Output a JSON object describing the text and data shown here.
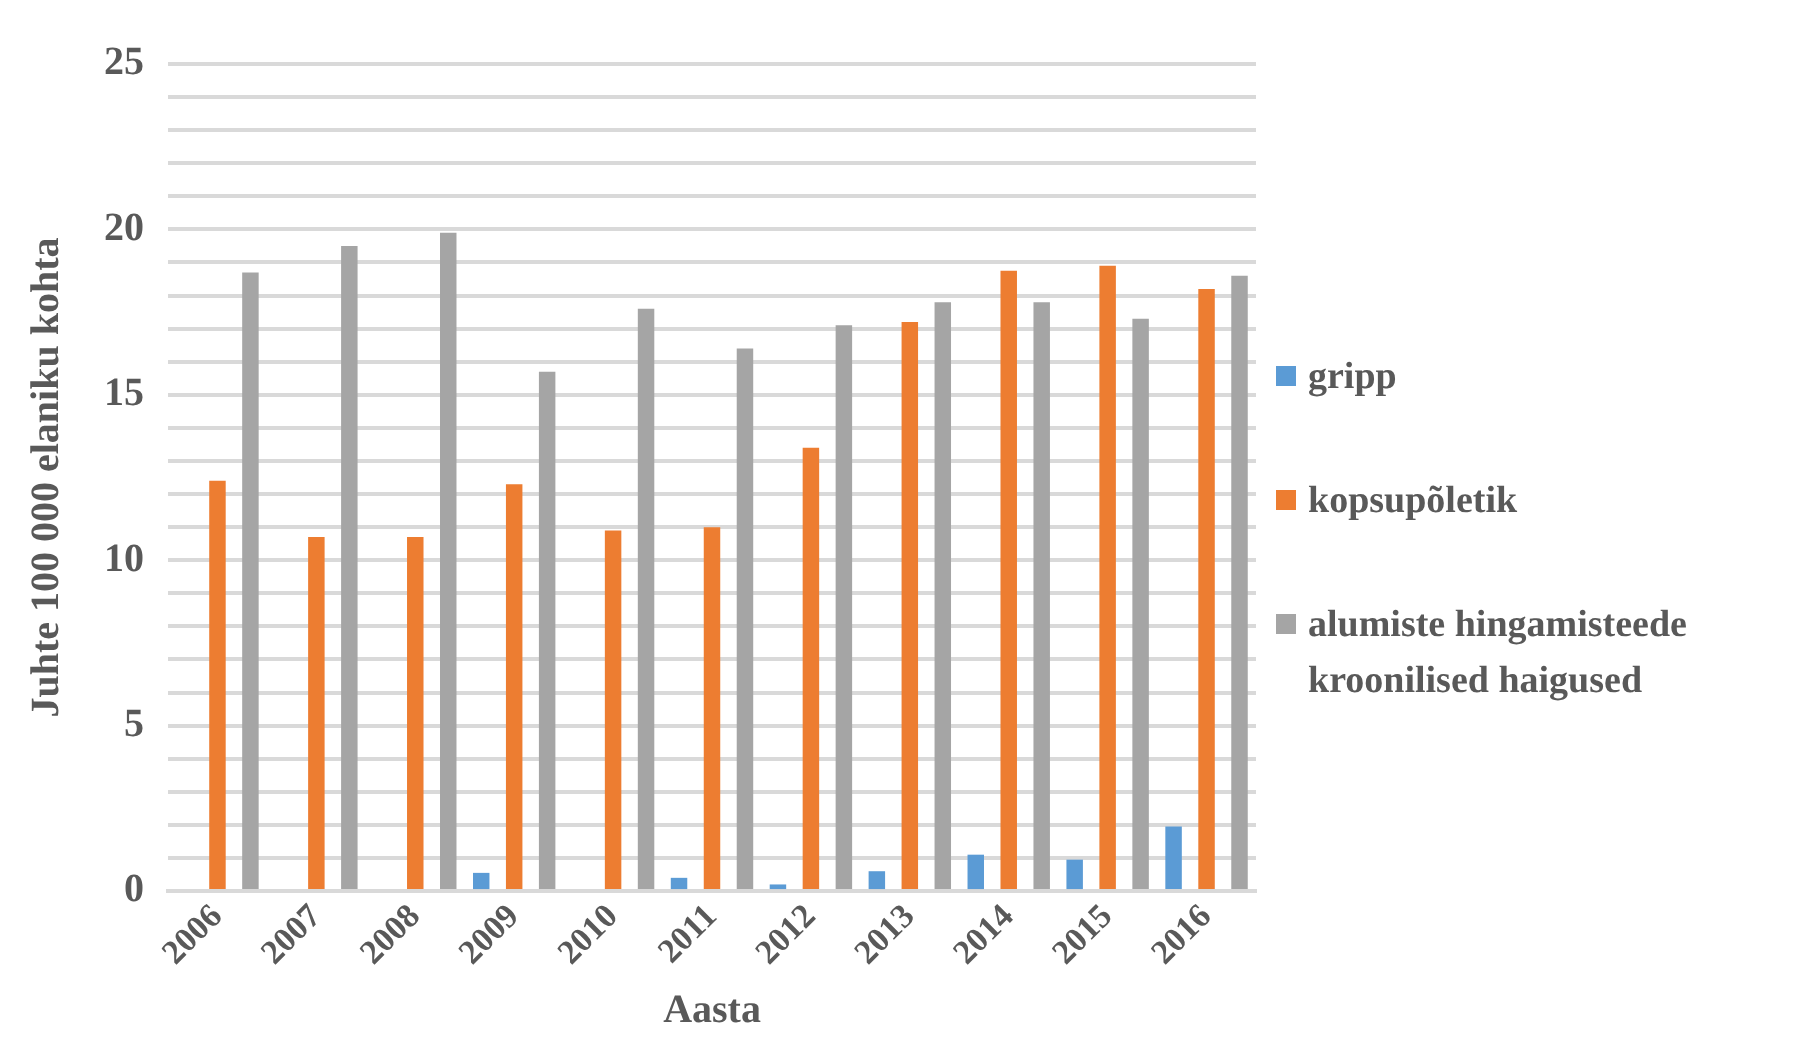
{
  "chart_data": {
    "type": "bar",
    "xlabel": "Aasta",
    "ylabel": "Juhte 100 000 elaniku kohta",
    "categories": [
      "2006",
      "2007",
      "2008",
      "2009",
      "2010",
      "2011",
      "2012",
      "2013",
      "2014",
      "2015",
      "2016"
    ],
    "series": [
      {
        "name": "gripp",
        "color": "#5b9bd5",
        "values": [
          0,
          0,
          0,
          0.55,
          0,
          0.4,
          0.2,
          0.6,
          1.1,
          0.95,
          1.95
        ]
      },
      {
        "name": "kopsupõletik",
        "color": "#ed7d31",
        "values": [
          12.4,
          10.7,
          10.7,
          12.3,
          10.9,
          11.0,
          13.4,
          17.2,
          18.75,
          18.9,
          18.2
        ]
      },
      {
        "name": "alumiste hingamisteede kroonilised haigused",
        "color": "#a5a5a5",
        "values": [
          18.7,
          19.5,
          19.9,
          15.7,
          17.6,
          16.4,
          17.1,
          17.8,
          17.8,
          17.3,
          18.6
        ]
      }
    ],
    "ylim": [
      0,
      25
    ],
    "yticks": [
      0,
      {
        "value": 1,
        "label": null
      },
      {
        "value": 2,
        "label": null
      },
      {
        "value": 3,
        "label": null
      },
      {
        "value": 4,
        "label": null
      },
      5,
      {
        "value": 6,
        "label": null
      },
      {
        "value": 7,
        "label": null
      },
      {
        "value": 8,
        "label": null
      },
      {
        "value": 9,
        "label": null
      },
      10,
      {
        "value": 11,
        "label": null
      },
      {
        "value": 12,
        "label": null
      },
      {
        "value": 13,
        "label": null
      },
      {
        "value": 14,
        "label": null
      },
      15,
      {
        "value": 16,
        "label": null
      },
      {
        "value": 17,
        "label": null
      },
      {
        "value": 18,
        "label": null
      },
      {
        "value": 19,
        "label": null
      },
      20,
      {
        "value": 21,
        "label": null
      },
      {
        "value": 22,
        "label": null
      },
      {
        "value": 23,
        "label": null
      },
      {
        "value": 24,
        "label": null
      },
      25
    ],
    "grid": "y",
    "legend": "right"
  }
}
